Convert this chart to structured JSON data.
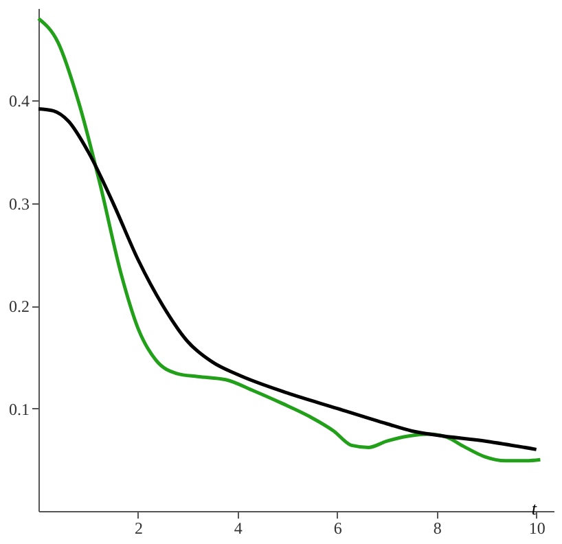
{
  "chart_data": {
    "type": "line",
    "xlabel": "t",
    "xlim": [
      0,
      10.35
    ],
    "ylim": [
      0,
      0.49
    ],
    "xticks": [
      2,
      4,
      6,
      8,
      10
    ],
    "yticks": [
      0.1,
      0.2,
      0.3,
      0.4
    ],
    "grid": false,
    "marker": "none",
    "line_style": "solid",
    "series": [
      {
        "color": "#22a01a",
        "x": [
          0,
          0.39,
          0.81,
          1.24,
          1.66,
          2.0,
          2.36,
          2.78,
          3.2,
          3.76,
          4.33,
          4.89,
          5.45,
          5.93,
          6.29,
          6.63,
          6.99,
          7.42,
          7.84,
          8.2,
          8.54,
          8.96,
          9.38,
          9.8,
          10.08
        ],
        "values": [
          0.48,
          0.457,
          0.398,
          0.318,
          0.231,
          0.178,
          0.147,
          0.134,
          0.131,
          0.128,
          0.117,
          0.105,
          0.092,
          0.078,
          0.064,
          0.062,
          0.068,
          0.073,
          0.075,
          0.072,
          0.063,
          0.053,
          0.049,
          0.049,
          0.05
        ]
      },
      {
        "color": "#000000",
        "x": [
          0,
          0.3,
          0.6,
          1.0,
          1.5,
          2,
          2.5,
          3,
          3.5,
          4,
          5,
          6,
          7,
          7.5,
          8,
          9,
          10
        ],
        "values": [
          0.392,
          0.39,
          0.38,
          0.35,
          0.3,
          0.245,
          0.2,
          0.165,
          0.145,
          0.133,
          0.115,
          0.1,
          0.085,
          0.078,
          0.074,
          0.068,
          0.06
        ]
      }
    ]
  }
}
